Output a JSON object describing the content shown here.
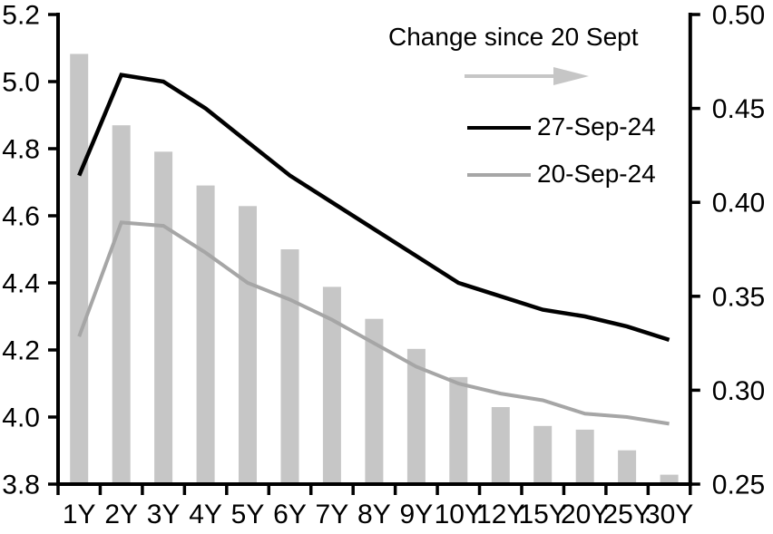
{
  "chart_data": {
    "type": "combo",
    "title": "",
    "categories": [
      "1Y",
      "2Y",
      "3Y",
      "4Y",
      "5Y",
      "6Y",
      "7Y",
      "8Y",
      "9Y",
      "10Y",
      "12Y",
      "15Y",
      "20Y",
      "25Y",
      "30Y"
    ],
    "series": [
      {
        "name": "Change since 20 Sept",
        "type": "bar",
        "axis": "right",
        "color": "#C6C6C6",
        "values": [
          0.479,
          0.441,
          0.427,
          0.409,
          0.398,
          0.375,
          0.355,
          0.338,
          0.322,
          0.307,
          0.291,
          0.281,
          0.279,
          0.268,
          0.255
        ]
      },
      {
        "name": "27-Sep-24",
        "type": "line",
        "axis": "left",
        "color": "#000000",
        "values": [
          4.72,
          5.02,
          5.0,
          4.92,
          4.82,
          4.72,
          4.64,
          4.56,
          4.48,
          4.4,
          4.36,
          4.32,
          4.3,
          4.27,
          4.23
        ]
      },
      {
        "name": "20-Sep-24",
        "type": "line",
        "axis": "left",
        "color": "#A6A6A6",
        "values": [
          4.24,
          4.58,
          4.57,
          4.49,
          4.4,
          4.35,
          4.29,
          4.22,
          4.15,
          4.1,
          4.07,
          4.05,
          4.01,
          4.0,
          3.98
        ]
      }
    ],
    "left_axis": {
      "min": 3.8,
      "max": 5.2,
      "step": 0.2,
      "tick_labels": [
        "5.2",
        "5.0",
        "4.8",
        "4.6",
        "4.4",
        "4.2",
        "4.0",
        "3.8"
      ]
    },
    "right_axis": {
      "min": 0.25,
      "max": 0.5,
      "step": 0.05,
      "tick_labels": [
        "0.50",
        "0.45",
        "0.40",
        "0.35",
        "0.30",
        "0.25"
      ]
    },
    "legend_title": "Change since 20 Sept",
    "legend_position": "top-center-inside",
    "grid": false,
    "arrow_color": "#C6C6C6",
    "axis_color": "#000000"
  }
}
